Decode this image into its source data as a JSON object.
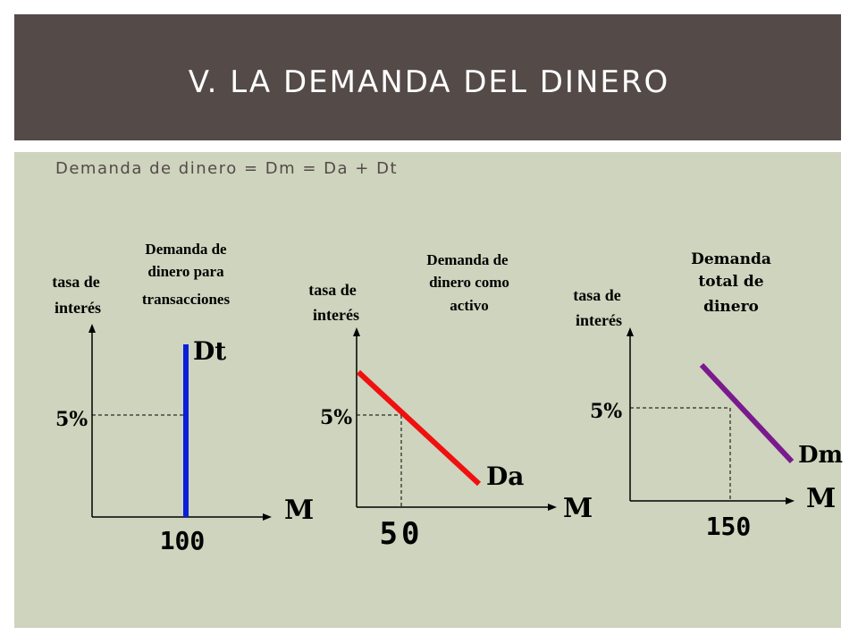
{
  "slide": {
    "title": "V. LA DEMANDA DEL DINERO",
    "subtitle": "Demanda de dinero = Dm = Da + Dt"
  },
  "panels": [
    {
      "title_lines": [
        "Demanda de",
        "dinero para",
        "transacciones"
      ],
      "y_label_lines": [
        "tasa de",
        "interés"
      ],
      "rate_label": "5%",
      "x_axis_label": "M",
      "curve_label": "Dt",
      "quantity_label": "100",
      "curve_color": "#0a1fd8"
    },
    {
      "title_lines": [
        "Demanda de",
        "dinero como",
        "activo"
      ],
      "y_label_lines": [
        "tasa de",
        "interés"
      ],
      "rate_label": "5%",
      "x_axis_label": "M",
      "curve_label": "Da",
      "quantity_label": "50",
      "curve_color": "#f01010"
    },
    {
      "title_lines": [
        "Demanda",
        "total de",
        "dinero"
      ],
      "y_label_lines": [
        "tasa de",
        "interés"
      ],
      "rate_label": "5%",
      "x_axis_label": "M",
      "curve_label": "Dm",
      "quantity_label": "150",
      "curve_color": "#7a1a8e"
    }
  ]
}
